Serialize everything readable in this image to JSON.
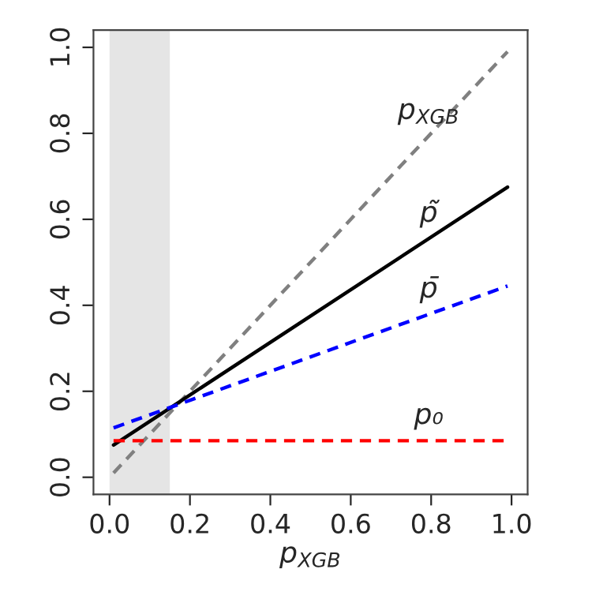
{
  "chart_data": {
    "type": "line",
    "xlabel": "p$_{XGB}$",
    "xlim": [
      -0.04,
      1.04
    ],
    "ylim": [
      -0.04,
      1.04
    ],
    "xticks": [
      {
        "value": 0,
        "label": "0.0"
      },
      0.2,
      0.4,
      0.6,
      0.8,
      {
        "value": 1,
        "label": "1.0"
      }
    ],
    "yticks": [
      {
        "value": 0,
        "label": "0.0"
      },
      0.2,
      0.4,
      0.6,
      0.8,
      {
        "value": 1,
        "label": "1.0"
      }
    ],
    "grid": false,
    "marker": "none",
    "bands": [
      {
        "axis": "x",
        "from": 0,
        "to": 0.15,
        "color": "#e5e5e5"
      }
    ],
    "x": [
      0.01,
      0.99
    ],
    "series": [
      {
        "name": "p$_{XGB}$",
        "color": "#808080",
        "line_style": "dashed",
        "values": [
          0.01,
          0.99
        ]
      },
      {
        "name": "p̃",
        "color": "#000000",
        "line_style": "solid",
        "values": [
          0.075,
          0.675
        ]
      },
      {
        "name": "p̄",
        "color": "#0000ff",
        "line_style": "dashed",
        "values": [
          0.115,
          0.445
        ]
      },
      {
        "name": "p₀",
        "color": "#ff0000",
        "line_style": "dashed",
        "values": [
          0.085,
          0.085
        ]
      }
    ]
  }
}
